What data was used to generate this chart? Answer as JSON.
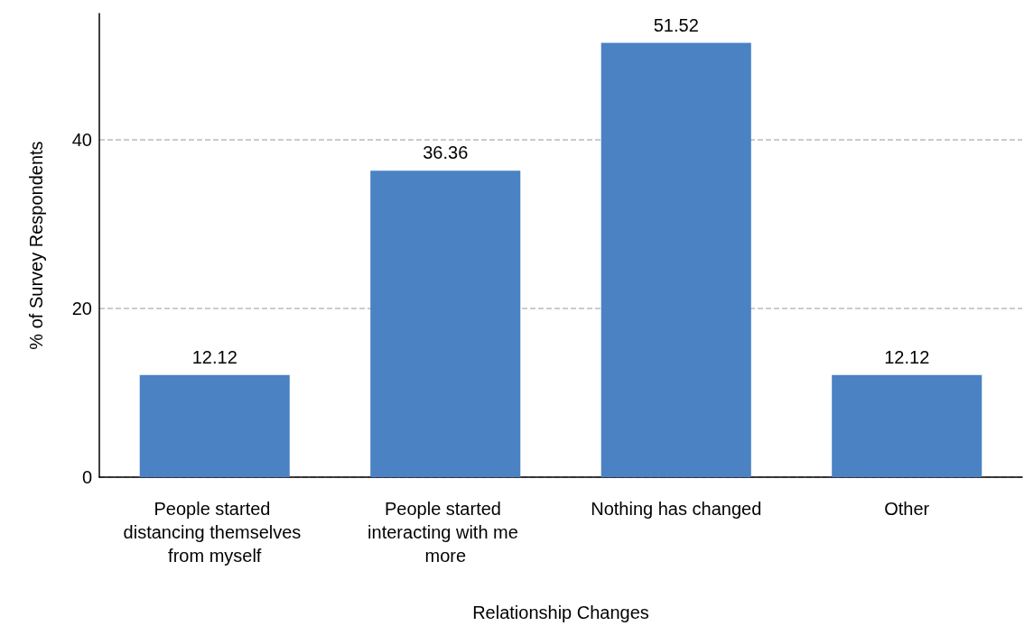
{
  "chart_data": {
    "type": "bar",
    "xlabel": "Relationship Changes",
    "ylabel": "% of Survey Respondents",
    "categories": [
      "People started distancing themselves from myself",
      "People started interacting with me more",
      "Nothing has changed",
      "Other"
    ],
    "values": [
      12.12,
      36.36,
      51.52,
      12.12
    ],
    "color": "#4a82c3",
    "data_labels": true,
    "ylim": [
      0,
      55
    ],
    "yticks": [
      0,
      20,
      40
    ],
    "grid": "y"
  }
}
